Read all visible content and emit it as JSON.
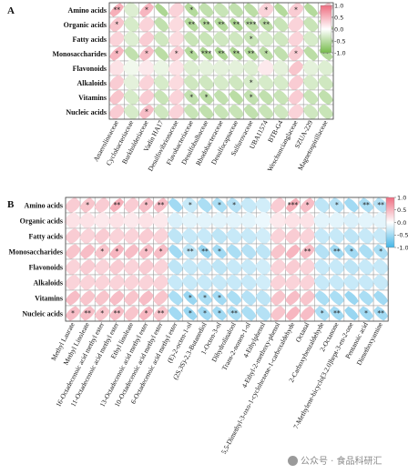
{
  "chart_data": [
    {
      "type": "heatmap",
      "panel_label": "A",
      "rows": [
        "Amino acids",
        "Organic acids",
        "Fatty acids",
        "Monosaccharides",
        "Flavonoids",
        "Alkaloids",
        "Vitamins",
        "Nucleic acids"
      ],
      "columns": [
        "Anaerolineaceae",
        "Cyclobacteriaceae",
        "Burkholderiaceae",
        "Vadin HA17",
        "Desulfovibrionaceae",
        "Flavobacteriaceae",
        "Desulfobulbaceae",
        "Rhodobacteraceae",
        "Desulfocapsaceae",
        "Sulfurovaceae",
        "UBA11574",
        "BTB-G4",
        "Weschuncianglaceae",
        "SZUA-229",
        "Magnetospirillaceae"
      ],
      "color_scale": {
        "min": -1.0,
        "max": 1.0,
        "ticks": [
          "1.0",
          "0.5",
          "0.0",
          "-0.5",
          "-1.0"
        ],
        "positive_color": "#ee6d80",
        "negative_color": "#76bb4b"
      },
      "values": [
        [
          0.55,
          -0.25,
          0.5,
          -0.6,
          0.3,
          -0.55,
          -0.45,
          -0.4,
          -0.45,
          -0.5,
          0.3,
          -0.55,
          0.35,
          -0.55,
          0.45
        ],
        [
          0.4,
          -0.3,
          0.3,
          -0.45,
          0.25,
          -0.55,
          -0.55,
          -0.55,
          -0.6,
          -0.5,
          -0.5,
          -0.4,
          0.3,
          -0.4,
          -0.55
        ],
        [
          0.3,
          -0.25,
          0.35,
          -0.35,
          0.25,
          -0.4,
          -0.4,
          -0.35,
          -0.35,
          -0.4,
          -0.3,
          -0.35,
          0.3,
          -0.3,
          -0.4
        ],
        [
          0.5,
          -0.45,
          0.45,
          -0.5,
          0.35,
          -0.55,
          -0.6,
          -0.6,
          -0.6,
          -0.55,
          -0.5,
          -0.45,
          0.35,
          -0.5,
          -0.55
        ],
        [
          0.2,
          -0.1,
          0.15,
          -0.15,
          0.2,
          -0.25,
          -0.2,
          -0.2,
          -0.2,
          -0.25,
          0.15,
          -0.2,
          0.4,
          -0.2,
          -0.25
        ],
        [
          0.35,
          -0.2,
          0.3,
          -0.3,
          0.25,
          -0.35,
          -0.35,
          -0.3,
          -0.35,
          -0.3,
          -0.3,
          -0.3,
          0.35,
          -0.3,
          -0.35
        ],
        [
          0.4,
          -0.3,
          0.35,
          -0.4,
          0.3,
          -0.45,
          -0.5,
          -0.45,
          -0.5,
          -0.45,
          -0.45,
          -0.4,
          0.35,
          -0.4,
          -0.45
        ],
        [
          0.35,
          -0.3,
          0.45,
          -0.35,
          0.3,
          -0.4,
          -0.45,
          -0.4,
          -0.4,
          -0.45,
          -0.4,
          -0.35,
          0.3,
          -0.35,
          -0.4
        ]
      ],
      "significance": [
        [
          "**",
          "",
          "*",
          "",
          "",
          "*",
          "",
          "",
          "",
          "",
          "*",
          "",
          "*",
          "",
          "*"
        ],
        [
          "*",
          "",
          "",
          "",
          "",
          "**",
          "**",
          "**",
          "**",
          "***",
          "**",
          "",
          "",
          "",
          "**"
        ],
        [
          "",
          "",
          "",
          "",
          "",
          "",
          "",
          "",
          "",
          "*",
          "",
          "",
          "",
          "",
          ""
        ],
        [
          "*",
          "",
          "*",
          "",
          "*",
          "*",
          "***",
          "**",
          "**",
          "**",
          "*",
          "",
          "*",
          "",
          "**"
        ],
        [
          "",
          "",
          "",
          "",
          "",
          "",
          "",
          "",
          "",
          "",
          "",
          "",
          "",
          "",
          ""
        ],
        [
          "",
          "",
          "",
          "",
          "",
          "",
          "",
          "",
          "",
          "*",
          "",
          "",
          "",
          "",
          ""
        ],
        [
          "",
          "",
          "",
          "",
          "",
          "*",
          "*",
          "",
          "",
          "*",
          "",
          "",
          "",
          "",
          ""
        ],
        [
          "",
          "",
          "*",
          "",
          "",
          "",
          "",
          "",
          "",
          "",
          "",
          "",
          "",
          "",
          ""
        ]
      ]
    },
    {
      "type": "heatmap",
      "panel_label": "B",
      "rows": [
        "Amino acids",
        "Organic acids",
        "Fatty acids",
        "Monosaccharides",
        "Flavonoids",
        "Alkaloids",
        "Vitamins",
        "Nucleic acids"
      ],
      "columns": [
        "Methyl Laurate",
        "Methyl Linoleate",
        "16-Octadecenoic acid methyl ester",
        "11-Octadecenoic acid methyl ester",
        "Ethyl linoleate",
        "13-Octadecenoic acid methyl ester",
        "10-Octadecenoic acid methyl ester",
        "6-Octadecenoic acid methyl ester",
        "(E)-2-octen-1-ol",
        "(2S,3S)-2,3-Butanediol",
        "1-Octen-3-ol",
        "Dihydrolinalool",
        "Trans-2-nonen-1-ol",
        "4-Ethylphenol",
        "4-Ethyl-2-methoxy-phenol",
        "5,5-Dimethyl-3-oxo-1-cyclohexene-1-carboxaldehyde",
        "Octanal",
        "2-Carboxybenzaldehyde",
        "2-Octanone",
        "7-Methylene-bicyclo[3.2.0]hept-3-en-2-one",
        "Pentanoic acid",
        "Dimethoxyamine"
      ],
      "color_scale": {
        "min": -1.0,
        "max": 1.0,
        "ticks": [
          "1.0",
          "0.5",
          "0.0",
          "-0.5",
          "-1.0"
        ],
        "positive_color": "#ee6d80",
        "negative_color": "#45b5e6"
      },
      "values": [
        [
          0.35,
          0.4,
          0.35,
          0.55,
          0.35,
          0.45,
          0.45,
          -0.5,
          -0.3,
          -0.45,
          -0.45,
          -0.4,
          -0.3,
          -0.25,
          0.35,
          0.55,
          0.45,
          -0.35,
          -0.4,
          -0.5,
          -0.45,
          -0.4
        ],
        [
          0.2,
          0.2,
          0.15,
          0.2,
          0.15,
          0.2,
          0.15,
          -0.2,
          -0.15,
          -0.15,
          -0.15,
          -0.15,
          -0.15,
          -0.1,
          0.15,
          0.2,
          0.2,
          -0.15,
          -0.15,
          -0.2,
          -0.15,
          -0.15
        ],
        [
          0.35,
          0.3,
          0.35,
          0.3,
          0.3,
          0.35,
          0.3,
          -0.35,
          -0.3,
          -0.3,
          -0.35,
          -0.3,
          -0.3,
          -0.25,
          0.3,
          0.35,
          0.3,
          -0.3,
          -0.3,
          -0.35,
          -0.3,
          -0.3
        ],
        [
          0.4,
          0.45,
          0.4,
          0.5,
          0.45,
          0.45,
          0.45,
          -0.5,
          -0.35,
          -0.55,
          -0.5,
          -0.45,
          -0.4,
          -0.35,
          0.4,
          0.5,
          0.45,
          -0.4,
          -0.5,
          -0.5,
          -0.45,
          -0.45
        ],
        [
          0.3,
          0.35,
          0.3,
          0.35,
          0.3,
          0.35,
          0.3,
          -0.35,
          -0.3,
          -0.3,
          -0.35,
          -0.3,
          -0.3,
          -0.25,
          0.3,
          0.35,
          0.3,
          -0.3,
          -0.3,
          -0.35,
          -0.3,
          -0.3
        ],
        [
          0.3,
          0.3,
          0.3,
          0.3,
          0.3,
          0.3,
          0.3,
          -0.3,
          -0.3,
          -0.3,
          -0.3,
          -0.3,
          -0.3,
          -0.25,
          0.3,
          0.3,
          0.3,
          -0.3,
          -0.3,
          -0.3,
          -0.3,
          -0.3
        ],
        [
          0.45,
          0.4,
          0.4,
          0.45,
          0.4,
          0.45,
          0.4,
          -0.45,
          -0.55,
          -0.45,
          -0.5,
          -0.45,
          -0.4,
          -0.35,
          0.4,
          0.45,
          0.4,
          -0.45,
          -0.45,
          -0.55,
          -0.45,
          -0.5
        ],
        [
          0.45,
          0.45,
          0.4,
          0.45,
          0.4,
          0.5,
          0.4,
          -0.5,
          -0.55,
          -0.5,
          -0.5,
          -0.45,
          -0.45,
          -0.4,
          0.4,
          0.5,
          0.45,
          -0.45,
          -0.5,
          -0.55,
          -0.5,
          -0.5
        ]
      ],
      "significance": [
        [
          "",
          "*",
          "",
          "**",
          "",
          "*",
          "**",
          "",
          "*",
          "",
          "*",
          "*",
          "",
          "",
          "",
          "***",
          "*",
          "",
          "*",
          "",
          "**",
          "**"
        ],
        [
          "",
          "",
          "",
          "",
          "",
          "",
          "",
          "",
          "",
          "",
          "",
          "",
          "",
          "",
          "",
          "",
          "",
          "",
          "",
          "",
          "",
          ""
        ],
        [
          "",
          "",
          "",
          "",
          "",
          "",
          "",
          "",
          "",
          "",
          "",
          "",
          "",
          "",
          "",
          "",
          "",
          "",
          "",
          "",
          "",
          ""
        ],
        [
          "",
          "",
          "*",
          "*",
          "",
          "*",
          "*",
          "",
          "**",
          "**",
          "*",
          "",
          "",
          "",
          "",
          "",
          "**",
          "",
          "**",
          "*",
          "",
          "*"
        ],
        [
          "",
          "",
          "",
          "",
          "",
          "",
          "",
          "",
          "",
          "",
          "",
          "",
          "",
          "",
          "",
          "",
          "",
          "",
          "",
          "",
          "",
          ""
        ],
        [
          "",
          "",
          "",
          "",
          "",
          "",
          "",
          "",
          "",
          "",
          "",
          "",
          "",
          "",
          "",
          "",
          "",
          "",
          "",
          "",
          "",
          ""
        ],
        [
          "",
          "",
          "",
          "",
          "",
          "",
          "",
          "",
          "*",
          "*",
          "*",
          "",
          "",
          "",
          "",
          "",
          "",
          "",
          "",
          "",
          "",
          ""
        ],
        [
          "*",
          "**",
          "*",
          "**",
          "",
          "*",
          "**",
          "",
          "*",
          "*",
          "*",
          "**",
          "",
          "",
          "",
          "",
          "",
          "*",
          "**",
          "",
          "*",
          "**"
        ]
      ]
    }
  ],
  "watermark": "公众号 · 食品科研汇"
}
